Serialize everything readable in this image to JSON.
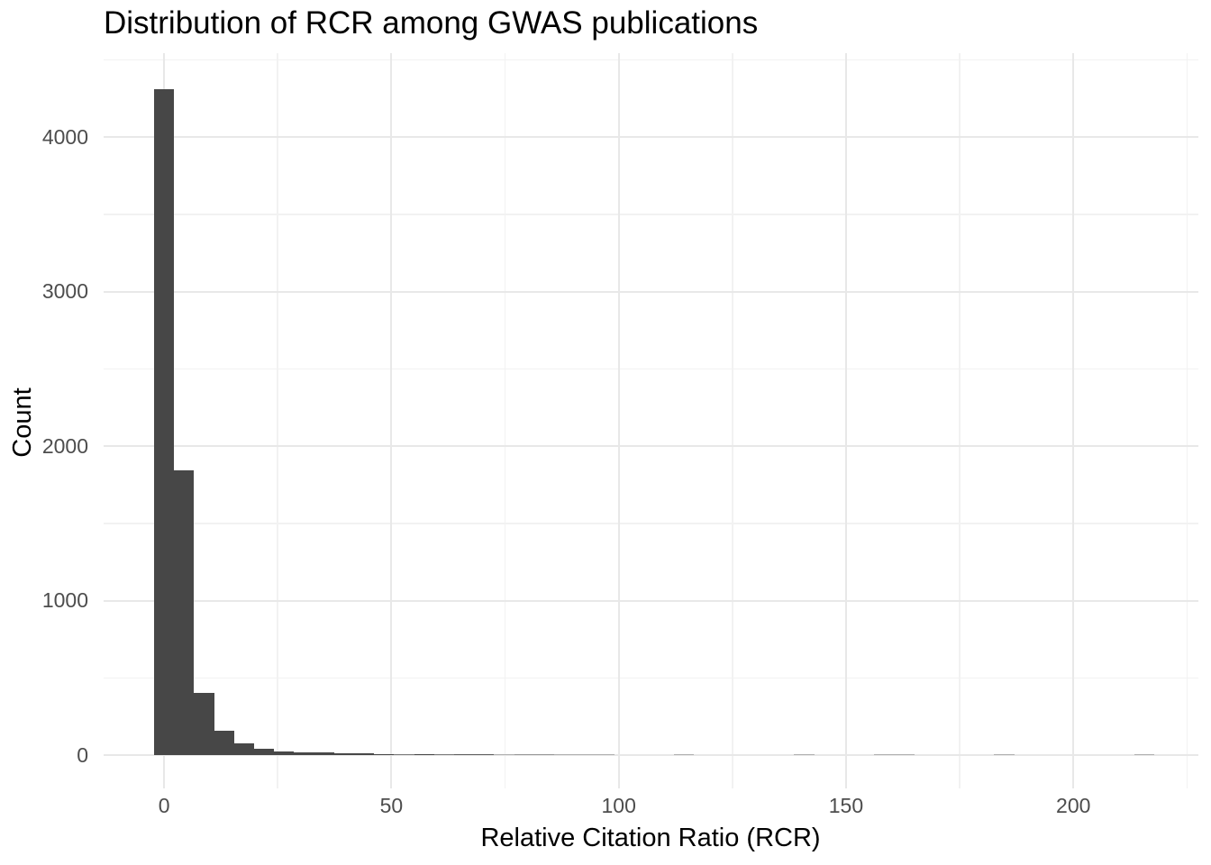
{
  "figure": {
    "background": "#FFFFFF"
  },
  "chart_data": {
    "type": "bar",
    "subtype": "histogram",
    "title": "Distribution of RCR among GWAS publications",
    "xlabel": "Relative Citation Ratio (RCR)",
    "ylabel": "Count",
    "x_ticks": [
      0,
      50,
      100,
      150,
      200
    ],
    "x_minor_ticks": [
      25,
      75,
      125,
      175,
      225
    ],
    "y_ticks": [
      0,
      1000,
      2000,
      3000,
      4000
    ],
    "y_minor_ticks": [
      500,
      1500,
      2500,
      3500,
      4500
    ],
    "xlim": [
      -13.3,
      227.5
    ],
    "ylim": [
      -215,
      4545
    ],
    "grid": "on",
    "legend": "none",
    "bin_width": 4.4,
    "bins": [
      {
        "center": 0,
        "count": 4310
      },
      {
        "center": 4.4,
        "count": 1847
      },
      {
        "center": 8.8,
        "count": 403
      },
      {
        "center": 13.2,
        "count": 160
      },
      {
        "center": 17.6,
        "count": 77
      },
      {
        "center": 22,
        "count": 40
      },
      {
        "center": 26.4,
        "count": 26
      },
      {
        "center": 30.8,
        "count": 17
      },
      {
        "center": 35.2,
        "count": 17
      },
      {
        "center": 39.6,
        "count": 12
      },
      {
        "center": 44,
        "count": 12
      },
      {
        "center": 48.4,
        "count": 7
      },
      {
        "center": 52.8,
        "count": 4
      },
      {
        "center": 57.2,
        "count": 6
      },
      {
        "center": 61.6,
        "count": 4
      },
      {
        "center": 66,
        "count": 5
      },
      {
        "center": 70.4,
        "count": 5
      },
      {
        "center": 74.8,
        "count": 2
      },
      {
        "center": 79.2,
        "count": 3
      },
      {
        "center": 83.6,
        "count": 3
      },
      {
        "center": 88,
        "count": 1
      },
      {
        "center": 92.4,
        "count": 1
      },
      {
        "center": 96.8,
        "count": 2
      },
      {
        "center": 114.4,
        "count": 2
      },
      {
        "center": 140.8,
        "count": 2
      },
      {
        "center": 158.4,
        "count": 1
      },
      {
        "center": 162.8,
        "count": 1
      },
      {
        "center": 184.8,
        "count": 1
      },
      {
        "center": 215.6,
        "count": 1
      }
    ],
    "colors": {
      "bar_fill": "#474747",
      "grid_major": "#E8E8E8",
      "grid_minor": "#F2F2F2",
      "tick_label": "#4D4D4D",
      "text": "#000000",
      "background": "#FFFFFF"
    }
  }
}
